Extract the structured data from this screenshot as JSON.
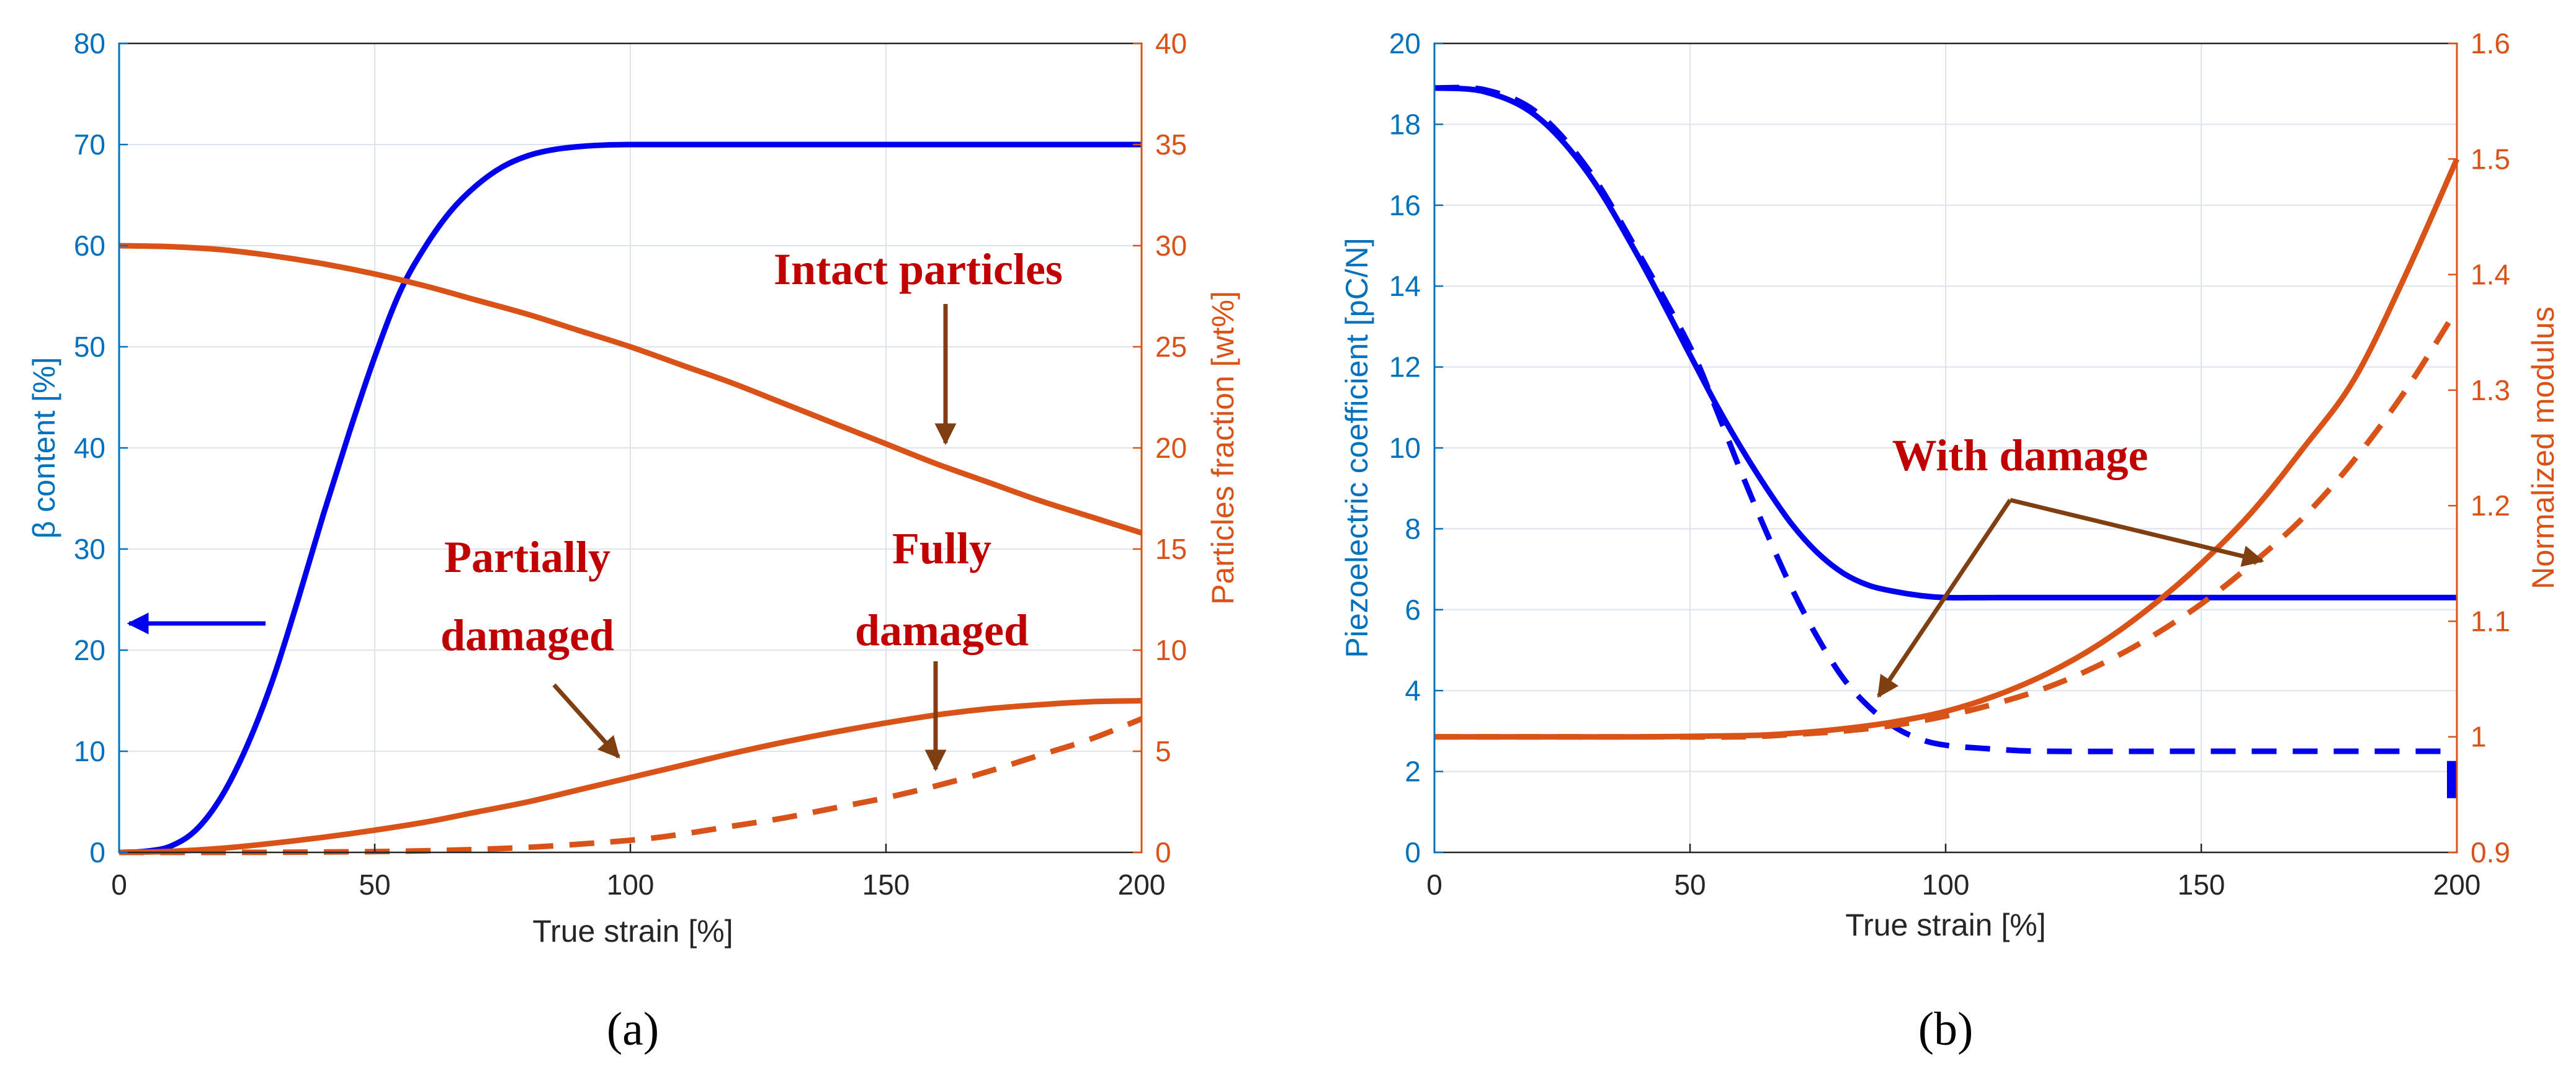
{
  "chart_data": [
    {
      "type": "line",
      "panel_label": "(a)",
      "xlabel": "True strain [%]",
      "ylabel_left": "β content [%]",
      "ylabel_right": "Particles fraction [wt%]",
      "xlim": [
        0,
        200
      ],
      "ylim_left": [
        0,
        80
      ],
      "ylim_right": [
        0,
        40
      ],
      "xticks": [
        0,
        50,
        100,
        150,
        200
      ],
      "yticks_left": [
        0,
        10,
        20,
        30,
        40,
        50,
        60,
        70,
        80
      ],
      "yticks_right": [
        0,
        5,
        10,
        15,
        20,
        25,
        30,
        35,
        40
      ],
      "grid": true,
      "series": [
        {
          "name": "β content",
          "axis": "left",
          "color": "#0000EE",
          "dash": "solid",
          "x": [
            0,
            5,
            10,
            15,
            20,
            25,
            30,
            35,
            40,
            45,
            50,
            55,
            60,
            65,
            70,
            75,
            80,
            85,
            90,
            95,
            100,
            110,
            120,
            150,
            200
          ],
          "y": [
            0,
            0.1,
            0.6,
            2.2,
            5.5,
            10.5,
            17,
            25,
            33.5,
            41.5,
            49,
            55.5,
            60,
            63.5,
            66,
            67.8,
            68.9,
            69.5,
            69.8,
            69.95,
            70,
            70,
            70,
            70,
            70
          ]
        },
        {
          "name": "Intact particles",
          "axis": "right",
          "color": "#D95319",
          "dash": "solid",
          "x": [
            0,
            10,
            20,
            30,
            40,
            50,
            60,
            70,
            80,
            90,
            100,
            110,
            120,
            130,
            140,
            150,
            160,
            170,
            180,
            190,
            200
          ],
          "y": [
            30,
            29.95,
            29.8,
            29.5,
            29.1,
            28.6,
            28,
            27.3,
            26.6,
            25.8,
            25,
            24.1,
            23.2,
            22.2,
            21.2,
            20.2,
            19.2,
            18.3,
            17.4,
            16.6,
            15.8
          ]
        },
        {
          "name": "Partially damaged",
          "axis": "right",
          "color": "#D95319",
          "dash": "solid",
          "x": [
            0,
            10,
            20,
            30,
            40,
            50,
            60,
            70,
            80,
            90,
            100,
            110,
            120,
            130,
            140,
            150,
            160,
            170,
            180,
            190,
            200
          ],
          "y": [
            0,
            0.05,
            0.2,
            0.45,
            0.75,
            1.1,
            1.5,
            2,
            2.5,
            3.1,
            3.7,
            4.3,
            4.9,
            5.45,
            5.95,
            6.4,
            6.8,
            7.1,
            7.3,
            7.45,
            7.5
          ]
        },
        {
          "name": "Fully damaged",
          "axis": "right",
          "color": "#D95319",
          "dash": "dashed",
          "x": [
            0,
            20,
            40,
            60,
            80,
            100,
            110,
            120,
            130,
            140,
            150,
            160,
            170,
            180,
            190,
            200
          ],
          "y": [
            0,
            0,
            0.02,
            0.08,
            0.25,
            0.6,
            0.9,
            1.3,
            1.7,
            2.2,
            2.7,
            3.3,
            4,
            4.8,
            5.6,
            6.6
          ]
        }
      ],
      "annotations": [
        {
          "text": "Intact particles",
          "lines": [
            "Intact particles"
          ],
          "points_to": "Intact particles curve at x≈160"
        },
        {
          "text": "Partially damaged",
          "lines": [
            "Partially",
            "damaged"
          ],
          "points_to": "Partially damaged curve at x≈98"
        },
        {
          "text": "Fully damaged",
          "lines": [
            "Fully",
            "damaged"
          ],
          "points_to": "Fully damaged curve at x≈160"
        }
      ],
      "arrow_hint": "blue arrow pointing left toward β content axis"
    },
    {
      "type": "line",
      "panel_label": "(b)",
      "xlabel": "True strain [%]",
      "ylabel_left": "Piezoelectric coefficient [pC/N]",
      "ylabel_right": "Normalized modulus",
      "xlim": [
        0,
        200
      ],
      "ylim_left": [
        0,
        20
      ],
      "ylim_right": [
        0.9,
        1.6
      ],
      "xticks": [
        0,
        50,
        100,
        150,
        200
      ],
      "yticks_left": [
        0,
        2,
        4,
        6,
        8,
        10,
        12,
        14,
        16,
        18,
        20
      ],
      "yticks_right": [
        "0.9",
        "1",
        "1.1",
        "1.2",
        "1.3",
        "1.4",
        "1.5",
        "1.6"
      ],
      "grid": true,
      "series": [
        {
          "name": "Piezoelectric coefficient (no damage)",
          "axis": "left",
          "color": "#0000EE",
          "dash": "solid",
          "x": [
            0,
            10,
            20,
            30,
            40,
            50,
            55,
            60,
            65,
            70,
            75,
            80,
            85,
            90,
            95,
            100,
            110,
            120,
            150,
            200
          ],
          "y": [
            18.9,
            18.8,
            18.2,
            16.8,
            14.7,
            12.3,
            11.1,
            10,
            9,
            8.1,
            7.4,
            6.9,
            6.6,
            6.45,
            6.35,
            6.3,
            6.3,
            6.3,
            6.3,
            6.3
          ]
        },
        {
          "name": "Piezoelectric coefficient (with damage)",
          "axis": "left",
          "color": "#0000EE",
          "dash": "dashed",
          "x": [
            0,
            10,
            20,
            30,
            40,
            50,
            55,
            60,
            65,
            70,
            75,
            80,
            85,
            90,
            95,
            100,
            110,
            120,
            150,
            198
          ],
          "y": [
            18.9,
            18.85,
            18.3,
            16.9,
            14.8,
            12.5,
            11,
            9.4,
            7.9,
            6.5,
            5.3,
            4.3,
            3.6,
            3.1,
            2.8,
            2.65,
            2.55,
            2.5,
            2.5,
            2.5
          ]
        },
        {
          "name": "Normalized modulus (no damage)",
          "axis": "right",
          "color": "#D95319",
          "dash": "solid",
          "x": [
            0,
            20,
            40,
            60,
            70,
            80,
            90,
            100,
            110,
            120,
            130,
            140,
            150,
            160,
            170,
            180,
            190,
            200
          ],
          "y": [
            1,
            1,
            1,
            1.001,
            1.003,
            1.007,
            1.013,
            1.022,
            1.036,
            1.055,
            1.08,
            1.112,
            1.15,
            1.195,
            1.25,
            1.31,
            1.4,
            1.5
          ]
        },
        {
          "name": "Normalized modulus (with damage)",
          "axis": "right",
          "color": "#D95319",
          "dash": "dashed",
          "x": [
            0,
            20,
            40,
            60,
            70,
            80,
            90,
            100,
            110,
            120,
            130,
            140,
            150,
            160,
            170,
            180,
            190,
            200
          ],
          "y": [
            1,
            1,
            1,
            1,
            1.002,
            1.005,
            1.01,
            1.018,
            1.029,
            1.043,
            1.062,
            1.086,
            1.115,
            1.15,
            1.19,
            1.24,
            1.3,
            1.37
          ]
        }
      ],
      "annotations": [
        {
          "text": "With damage",
          "lines": [
            "With damage"
          ],
          "points_to": "dashed curves at x≈87 and x≈163"
        }
      ],
      "end_marker": {
        "x": 200,
        "y": 1.8,
        "note": "small blue marker at right edge"
      }
    }
  ]
}
